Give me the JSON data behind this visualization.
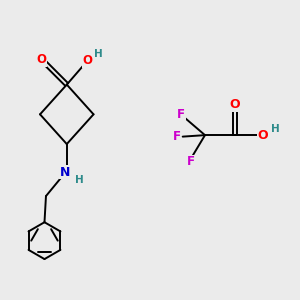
{
  "background_color": "#ebebeb",
  "figsize": [
    3.0,
    3.0
  ],
  "dpi": 100,
  "bond_color": "#000000",
  "bond_lw": 1.4,
  "atom_colors": {
    "O": "#ff0000",
    "N": "#0000cd",
    "F": "#cc00cc",
    "H": "#2e8b8b",
    "C": "#000000"
  },
  "font_size": 8.5
}
